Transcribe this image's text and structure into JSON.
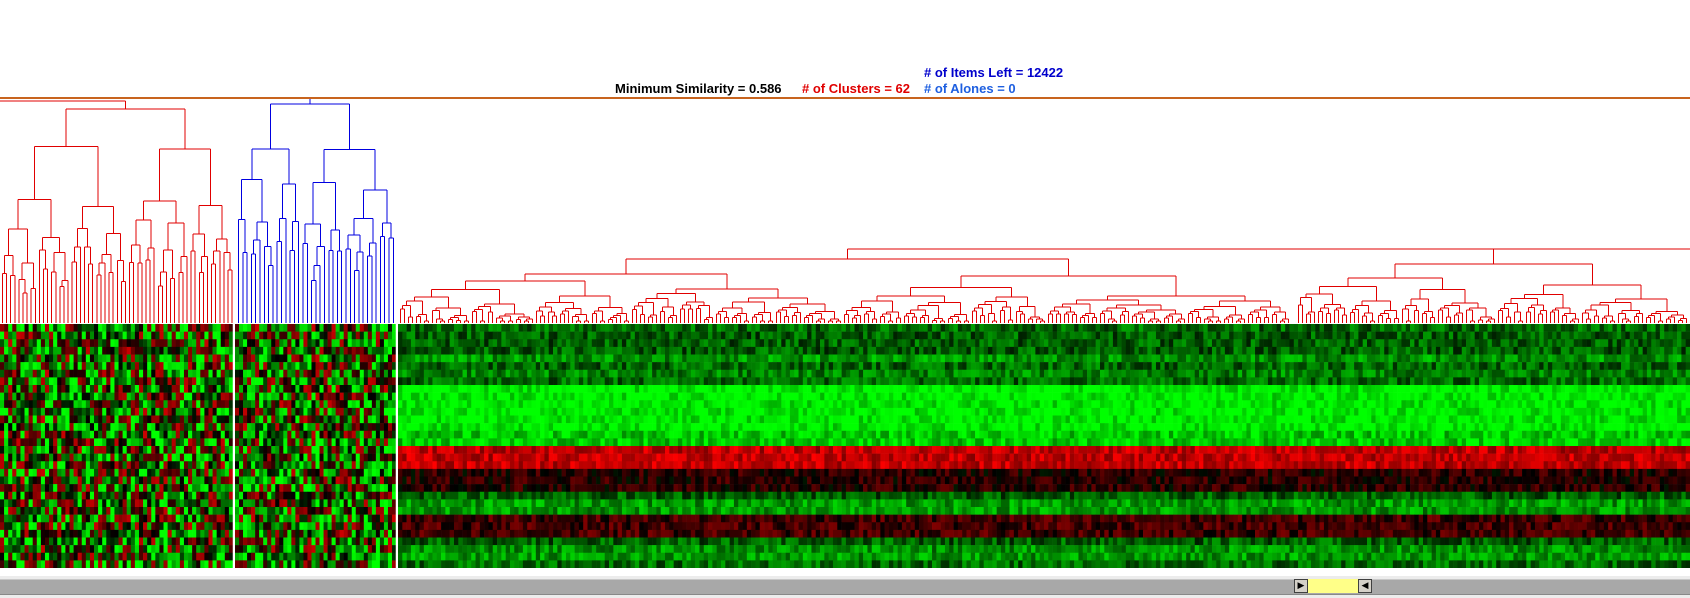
{
  "status": {
    "min_similarity": "Minimum Similarity = 0.586",
    "clusters": "# of Clusters = 62",
    "alones": "# of Alones = 0",
    "items_left": "# of Items Left = 12422"
  },
  "colors": {
    "red_branch": "#e00000",
    "blue_branch": "#0000e0",
    "separator": "#c8641e",
    "heat_high": "#ff0000",
    "heat_low": "#00ff00",
    "scroll_thumb": "#ffff88"
  },
  "scrollbar": {
    "left_arrow": "left-arrow-icon",
    "right_arrow": "right-arrow-icon"
  },
  "heatmap": {
    "rows": 32,
    "left_columns": 57,
    "mid_columns": 40,
    "right_columns": 300
  }
}
